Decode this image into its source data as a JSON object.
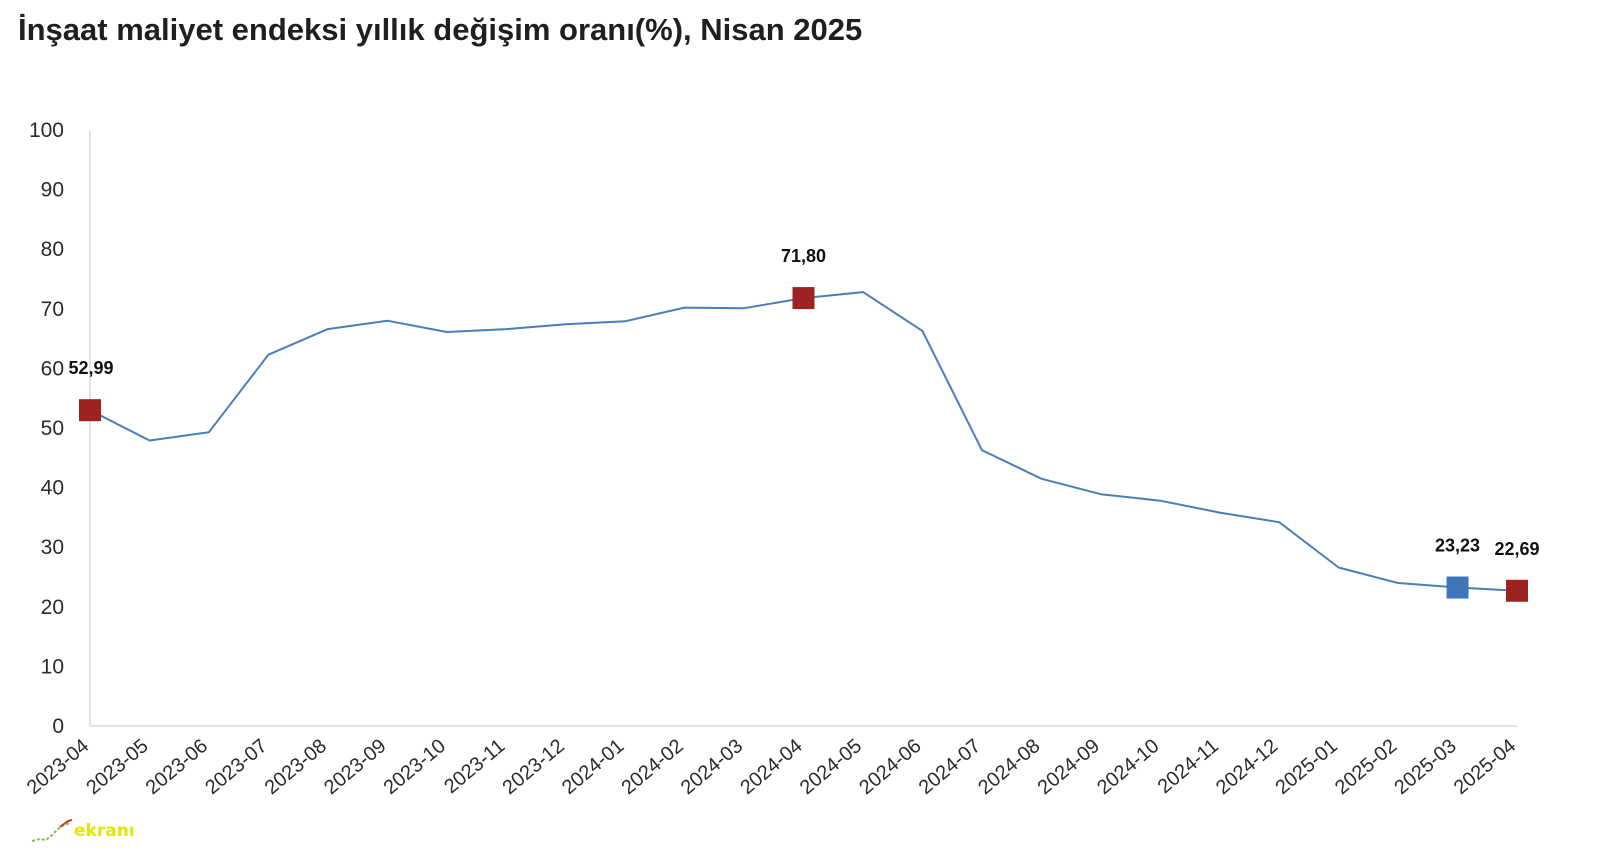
{
  "title": "İnşaat maliyet endeksi yıllık değişim oranı(%), Nisan 2025",
  "logo_text": "ekranı",
  "colors": {
    "line": "#4a7ebb",
    "marker_red": "#9c2320",
    "marker_blue": "#3f76b9",
    "axis": "#d0d0d0"
  },
  "chart_data": {
    "type": "line",
    "title": "İnşaat maliyet endeksi yıllık değişim oranı(%), Nisan 2025",
    "xlabel": "",
    "ylabel": "",
    "ylim": [
      0,
      100
    ],
    "yticks": [
      "0",
      "10",
      "20",
      "30",
      "40",
      "50",
      "60",
      "70",
      "80",
      "90",
      "100"
    ],
    "grid": false,
    "legend": "none",
    "categories": [
      "2023-04",
      "2023-05",
      "2023-06",
      "2023-07",
      "2023-08",
      "2023-09",
      "2023-10",
      "2023-11",
      "2023-12",
      "2024-01",
      "2024-02",
      "2024-03",
      "2024-04",
      "2024-05",
      "2024-06",
      "2024-07",
      "2024-08",
      "2024-09",
      "2024-10",
      "2024-11",
      "2024-12",
      "2025-01",
      "2025-02",
      "2025-03",
      "2025-04"
    ],
    "series": [
      {
        "values": [
          52.99,
          47.9,
          49.3,
          62.3,
          66.6,
          68.0,
          66.1,
          66.6,
          67.4,
          67.9,
          70.2,
          70.1,
          71.8,
          72.8,
          66.3,
          46.3,
          41.5,
          38.9,
          37.8,
          35.8,
          34.2,
          26.6,
          24.0,
          23.23,
          22.69
        ]
      }
    ],
    "annotations": [
      {
        "index": 0,
        "label": "52,99",
        "marker": "red"
      },
      {
        "index": 12,
        "label": "71,80",
        "marker": "red"
      },
      {
        "index": 23,
        "label": "23,23",
        "marker": "blue"
      },
      {
        "index": 24,
        "label": "22,69",
        "marker": "red"
      }
    ]
  }
}
